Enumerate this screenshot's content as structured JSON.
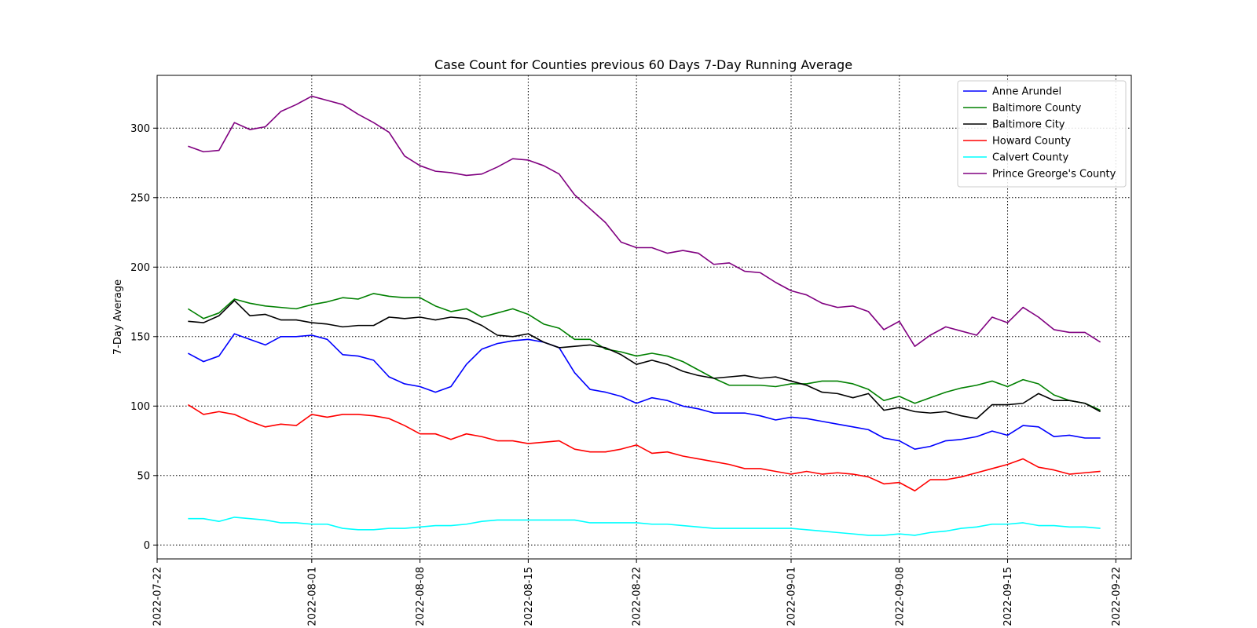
{
  "chart_data": {
    "type": "line",
    "title": "Case Count for Counties previous 60 Days 7-Day Running Average",
    "xlabel": "",
    "ylabel": "7-Day Average",
    "start_date": "2022-07-24",
    "x_ticks": [
      "2022-07-22",
      "2022-08-01",
      "2022-08-08",
      "2022-08-15",
      "2022-08-22",
      "2022-09-01",
      "2022-09-08",
      "2022-09-15",
      "2022-09-22"
    ],
    "y_ticks": [
      0,
      50,
      100,
      150,
      200,
      250,
      300
    ],
    "xlim": [
      "2022-07-22",
      "2022-09-23"
    ],
    "ylim": [
      -10,
      338
    ],
    "grid": true,
    "legend_position": "top-right",
    "series": [
      {
        "name": "Anne Arundel",
        "color": "#0000ff",
        "values": [
          138,
          132,
          136,
          152,
          148,
          144,
          150,
          150,
          151,
          148,
          137,
          136,
          133,
          121,
          116,
          114,
          110,
          114,
          130,
          141,
          145,
          147,
          148,
          146,
          142,
          124,
          112,
          110,
          107,
          102,
          106,
          104,
          100,
          98,
          95,
          95,
          95,
          93,
          90,
          92,
          91,
          89,
          87,
          85,
          83,
          77,
          75,
          69,
          71,
          75,
          76,
          78,
          82,
          79,
          86,
          85,
          78,
          79,
          77,
          77
        ]
      },
      {
        "name": "Baltimore County",
        "color": "#008000",
        "values": [
          170,
          163,
          167,
          177,
          174,
          172,
          171,
          170,
          173,
          175,
          178,
          177,
          181,
          179,
          178,
          178,
          172,
          168,
          170,
          164,
          167,
          170,
          166,
          159,
          156,
          148,
          148,
          141,
          139,
          136,
          138,
          136,
          132,
          126,
          120,
          115,
          115,
          115,
          114,
          116,
          116,
          118,
          118,
          116,
          112,
          104,
          107,
          102,
          106,
          110,
          113,
          115,
          118,
          114,
          119,
          116,
          108,
          104,
          102,
          97
        ]
      },
      {
        "name": "Baltimore City",
        "color": "#000000",
        "values": [
          161,
          160,
          165,
          176,
          165,
          166,
          162,
          162,
          160,
          159,
          157,
          158,
          158,
          164,
          163,
          164,
          162,
          164,
          163,
          158,
          151,
          150,
          152,
          146,
          142,
          143,
          144,
          142,
          137,
          130,
          133,
          130,
          125,
          122,
          120,
          121,
          122,
          120,
          121,
          118,
          115,
          110,
          109,
          106,
          109,
          97,
          99,
          96,
          95,
          96,
          93,
          91,
          101,
          101,
          102,
          109,
          104,
          104,
          102,
          96
        ]
      },
      {
        "name": "Howard County",
        "color": "#ff0000",
        "values": [
          101,
          94,
          96,
          94,
          89,
          85,
          87,
          86,
          94,
          92,
          94,
          94,
          93,
          91,
          86,
          80,
          80,
          76,
          80,
          78,
          75,
          75,
          73,
          74,
          75,
          69,
          67,
          67,
          69,
          72,
          66,
          67,
          64,
          62,
          60,
          58,
          55,
          55,
          53,
          51,
          53,
          51,
          52,
          51,
          49,
          44,
          45,
          39,
          47,
          47,
          49,
          52,
          55,
          58,
          62,
          56,
          54,
          51,
          52,
          53
        ]
      },
      {
        "name": "Calvert County",
        "color": "#00ffff",
        "values": [
          19,
          19,
          17,
          20,
          19,
          18,
          16,
          16,
          15,
          15,
          12,
          11,
          11,
          12,
          12,
          13,
          14,
          14,
          15,
          17,
          18,
          18,
          18,
          18,
          18,
          18,
          16,
          16,
          16,
          16,
          15,
          15,
          14,
          13,
          12,
          12,
          12,
          12,
          12,
          12,
          11,
          10,
          9,
          8,
          7,
          7,
          8,
          7,
          9,
          10,
          12,
          13,
          15,
          15,
          16,
          14,
          14,
          13,
          13,
          12
        ]
      },
      {
        "name": "Prince Greorge's County",
        "color": "#800080",
        "values": [
          287,
          283,
          284,
          304,
          299,
          301,
          312,
          317,
          323,
          320,
          317,
          310,
          304,
          297,
          280,
          273,
          269,
          268,
          266,
          267,
          272,
          278,
          277,
          273,
          267,
          252,
          242,
          232,
          218,
          214,
          214,
          210,
          212,
          210,
          202,
          203,
          197,
          196,
          189,
          183,
          180,
          174,
          171,
          172,
          168,
          155,
          161,
          143,
          151,
          157,
          154,
          151,
          164,
          160,
          171,
          164,
          155,
          153,
          153,
          146
        ]
      }
    ]
  }
}
